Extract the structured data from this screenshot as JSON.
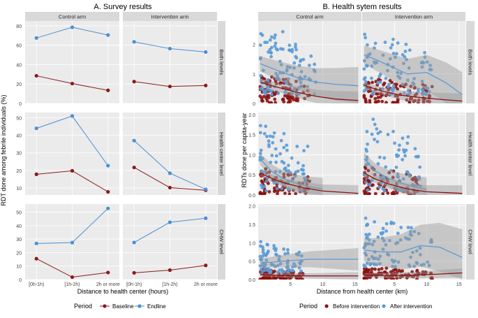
{
  "colors": {
    "baseline": "#8b1a1a",
    "endline": "#4a8fd1",
    "before": "#8b1111",
    "after": "#5a9ad6",
    "panel_bg": "#ebebeb",
    "strip_bg": "#d9d9d9",
    "grid": "#ffffff",
    "band": "#9a9a9a"
  },
  "chart_data": [
    {
      "id": "A",
      "type": "line",
      "title": "A. Survey results",
      "xlabel": "Distance to health center (hours)",
      "ylabel": "RDT done among febrile individuals (%)",
      "categories": [
        "[0h-1h)",
        "[1h-2h)",
        "2h or more"
      ],
      "columns": [
        "Control arm",
        "Intervention arm"
      ],
      "rows": [
        {
          "label": "Both levels",
          "ylim": [
            0,
            85
          ],
          "yticks": [
            0,
            20,
            40,
            60,
            80
          ]
        },
        {
          "label": "Health center level",
          "ylim": [
            6,
            53
          ],
          "yticks": [
            10,
            20,
            30,
            40,
            50
          ]
        },
        {
          "label": "CHW level",
          "ylim": [
            0,
            56
          ],
          "yticks": [
            0,
            10,
            20,
            30,
            40,
            50
          ]
        }
      ],
      "legend": {
        "title": "Period",
        "items": [
          "Baseline",
          "Endline"
        ],
        "position": "bottom"
      },
      "panels": [
        {
          "row": 0,
          "col": 0,
          "series": [
            {
              "name": "Baseline",
              "values": [
                28.5,
                20.5,
                13.5
              ]
            },
            {
              "name": "Endline",
              "values": [
                67.5,
                78.5,
                70.5
              ]
            }
          ]
        },
        {
          "row": 0,
          "col": 1,
          "series": [
            {
              "name": "Baseline",
              "values": [
                22.5,
                17.5,
                18.5
              ]
            },
            {
              "name": "Endline",
              "values": [
                63.5,
                56.5,
                53.0
              ]
            }
          ]
        },
        {
          "row": 1,
          "col": 0,
          "series": [
            {
              "name": "Baseline",
              "values": [
                17.8,
                19.8,
                7.8
              ]
            },
            {
              "name": "Endline",
              "values": [
                44.0,
                51.0,
                22.7
              ]
            }
          ]
        },
        {
          "row": 1,
          "col": 1,
          "series": [
            {
              "name": "Baseline",
              "values": [
                21.7,
                10.2,
                8.7
              ]
            },
            {
              "name": "Endline",
              "values": [
                37.0,
                18.4,
                9.2
              ]
            }
          ]
        },
        {
          "row": 2,
          "col": 0,
          "series": [
            {
              "name": "Baseline",
              "values": [
                15.5,
                1.8,
                5.2
              ]
            },
            {
              "name": "Endline",
              "values": [
                26.8,
                27.4,
                52.8
              ]
            }
          ]
        },
        {
          "row": 2,
          "col": 1,
          "series": [
            {
              "name": "Baseline",
              "values": [
                5.0,
                7.0,
                10.5
              ]
            },
            {
              "name": "Endline",
              "values": [
                27.5,
                42.5,
                45.5
              ]
            }
          ]
        }
      ]
    },
    {
      "id": "B",
      "type": "scatter",
      "title": "B. Health sytem results",
      "xlabel": "Distance from health center (km)",
      "ylabel": "RDTs done per capita-year",
      "columns": [
        "Control arm",
        "Intervention arm"
      ],
      "xlim": [
        0,
        16
      ],
      "xticks": [
        5,
        10,
        15
      ],
      "rows": [
        {
          "label": "Both levels",
          "ylim": [
            0,
            2.8
          ],
          "yticks": [
            0,
            1,
            2
          ]
        },
        {
          "label": "Health center level",
          "ylim": [
            0,
            2.05
          ],
          "yticks": [
            0.0,
            0.5,
            1.0,
            1.5,
            2.0
          ],
          "tick_labels": [
            "0.0",
            "0.5",
            "1.0",
            "1.5",
            "2.0"
          ]
        },
        {
          "label": "CHW level",
          "ylim": [
            0,
            2.05
          ],
          "yticks": [
            0.0,
            0.5,
            1.0,
            1.5,
            2.0
          ],
          "tick_labels": [
            "0.0",
            "0.5",
            "1.0",
            "1.5",
            "2.0"
          ]
        }
      ],
      "legend": {
        "title": "Period",
        "items": [
          "Before intervention",
          "After intervention"
        ],
        "position": "bottom"
      },
      "panels": [
        {
          "row": 0,
          "col": 0,
          "smooth_before": [
            [
              0.3,
              0.72
            ],
            [
              3,
              0.55
            ],
            [
              6,
              0.38
            ],
            [
              9,
              0.24
            ],
            [
              12,
              0.15
            ],
            [
              15.5,
              0.1
            ]
          ],
          "smooth_after": [
            [
              0.3,
              1.35
            ],
            [
              3,
              1.12
            ],
            [
              6,
              0.88
            ],
            [
              9,
              0.72
            ],
            [
              12,
              0.65
            ],
            [
              15.5,
              0.6
            ]
          ],
          "band_before": 0.12,
          "band_after": 0.25,
          "clouds": [
            {
              "period": "before",
              "xr": [
                0.3,
                8
              ],
              "yr": [
                0.02,
                1.0
              ],
              "n": 95
            },
            {
              "period": "after",
              "xr": [
                0.3,
                9
              ],
              "yr": [
                0.3,
                2.4
              ],
              "n": 90
            },
            {
              "period": "after",
              "xr": [
                2,
                7
              ],
              "yr": [
                1.5,
                2.7
              ],
              "n": 12
            }
          ]
        },
        {
          "row": 0,
          "col": 1,
          "smooth_before": [
            [
              0.3,
              0.62
            ],
            [
              3,
              0.42
            ],
            [
              6,
              0.28
            ],
            [
              9,
              0.2
            ],
            [
              12,
              0.14
            ],
            [
              15.5,
              0.08
            ]
          ],
          "smooth_after": [
            [
              0.3,
              1.65
            ],
            [
              2.5,
              1.45
            ],
            [
              5,
              1.2
            ],
            [
              7,
              1.0
            ],
            [
              10,
              1.05
            ],
            [
              13,
              0.7
            ],
            [
              15.5,
              0.3
            ]
          ],
          "band_before": 0.1,
          "band_after": 0.3,
          "clouds": [
            {
              "period": "before",
              "xr": [
                0.3,
                11
              ],
              "yr": [
                0.02,
                0.9
              ],
              "n": 100
            },
            {
              "period": "after",
              "xr": [
                0.3,
                11
              ],
              "yr": [
                0.3,
                2.6
              ],
              "n": 95
            }
          ]
        },
        {
          "row": 1,
          "col": 0,
          "smooth_before": [
            [
              0.3,
              0.55
            ],
            [
              2,
              0.42
            ],
            [
              4,
              0.3
            ],
            [
              7,
              0.18
            ],
            [
              10,
              0.1
            ],
            [
              15.5,
              0.04
            ]
          ],
          "smooth_after": [
            [
              0.3,
              0.9
            ],
            [
              2,
              0.6
            ],
            [
              4,
              0.4
            ],
            [
              6,
              0.28
            ],
            [
              8,
              0.2
            ],
            [
              10,
              0.15
            ]
          ],
          "band_before": 0.08,
          "band_after": 0.14,
          "clouds": [
            {
              "period": "before",
              "xr": [
                0.3,
                8
              ],
              "yr": [
                0.02,
                0.7
              ],
              "n": 85
            },
            {
              "period": "after",
              "xr": [
                0.3,
                8
              ],
              "yr": [
                0.1,
                1.9
              ],
              "n": 75
            }
          ]
        },
        {
          "row": 1,
          "col": 1,
          "smooth_before": [
            [
              0.3,
              0.55
            ],
            [
              2,
              0.4
            ],
            [
              4,
              0.28
            ],
            [
              7,
              0.15
            ],
            [
              10,
              0.08
            ],
            [
              15.5,
              0.04
            ]
          ],
          "smooth_after": [
            [
              0.3,
              0.9
            ],
            [
              2,
              0.6
            ],
            [
              4,
              0.42
            ],
            [
              6,
              0.3
            ],
            [
              8,
              0.2
            ],
            [
              10,
              0.14
            ]
          ],
          "band_before": 0.08,
          "band_after": 0.15,
          "clouds": [
            {
              "period": "before",
              "xr": [
                0.3,
                9
              ],
              "yr": [
                0.02,
                0.75
              ],
              "n": 90
            },
            {
              "period": "after",
              "xr": [
                0.3,
                9
              ],
              "yr": [
                0.1,
                2.0
              ],
              "n": 80
            }
          ]
        },
        {
          "row": 2,
          "col": 0,
          "smooth_before": [
            [
              0.3,
              0.13
            ],
            [
              4,
              0.11
            ],
            [
              8,
              0.1
            ],
            [
              12,
              0.1
            ],
            [
              15.5,
              0.1
            ]
          ],
          "smooth_after": [
            [
              0.3,
              0.45
            ],
            [
              4,
              0.5
            ],
            [
              8,
              0.55
            ],
            [
              12,
              0.55
            ],
            [
              15.5,
              0.55
            ]
          ],
          "band_before": 0.04,
          "band_after": 0.12,
          "clouds": [
            {
              "period": "before",
              "xr": [
                0.3,
                7
              ],
              "yr": [
                0.01,
                0.3
              ],
              "n": 95
            },
            {
              "period": "after",
              "xr": [
                0.3,
                7
              ],
              "yr": [
                0.2,
                1.05
              ],
              "n": 80
            }
          ]
        },
        {
          "row": 2,
          "col": 1,
          "smooth_before": [
            [
              0.3,
              0.12
            ],
            [
              4,
              0.11
            ],
            [
              8,
              0.12
            ],
            [
              12,
              0.15
            ],
            [
              15.5,
              0.18
            ]
          ],
          "smooth_after": [
            [
              0.3,
              0.8
            ],
            [
              3,
              0.75
            ],
            [
              6,
              0.75
            ],
            [
              9,
              0.92
            ],
            [
              12,
              0.88
            ],
            [
              15.5,
              0.6
            ]
          ],
          "band_before": 0.05,
          "band_after": 0.3,
          "clouds": [
            {
              "period": "before",
              "xr": [
                0.3,
                11
              ],
              "yr": [
                0.01,
                0.35
              ],
              "n": 100
            },
            {
              "period": "after",
              "xr": [
                0.3,
                11
              ],
              "yr": [
                0.35,
                1.75
              ],
              "n": 90
            }
          ]
        }
      ]
    }
  ]
}
